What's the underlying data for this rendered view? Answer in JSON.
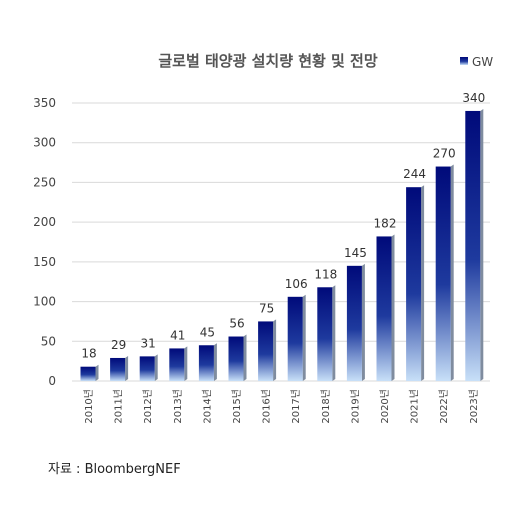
{
  "source": "자료 : BloombergNEF",
  "chart_data": {
    "type": "bar",
    "title": "글로벌 태양광 설치량 현황 및 전망",
    "legend": {
      "label": "GW",
      "position": "top-right"
    },
    "categories": [
      "2010년",
      "2011년",
      "2012년",
      "2013년",
      "2014년",
      "2015년",
      "2016년",
      "2017년",
      "2018년",
      "2019년",
      "2020년",
      "2021년",
      "2022년",
      "2023년"
    ],
    "series": [
      {
        "name": "GW",
        "values": [
          18,
          29,
          31,
          41,
          45,
          56,
          75,
          106,
          118,
          145,
          182,
          244,
          270,
          340
        ]
      }
    ],
    "ylim": [
      0,
      350
    ],
    "yticks": [
      0,
      50,
      100,
      150,
      200,
      250,
      300,
      350
    ],
    "grid": true,
    "colors": {
      "bar_top": "#000a7a",
      "bar_mid": "#1e3a9e",
      "bar_bottom": "#c8e0f8",
      "side": "#7f8c9f",
      "grid": "#d9d9d9"
    }
  }
}
